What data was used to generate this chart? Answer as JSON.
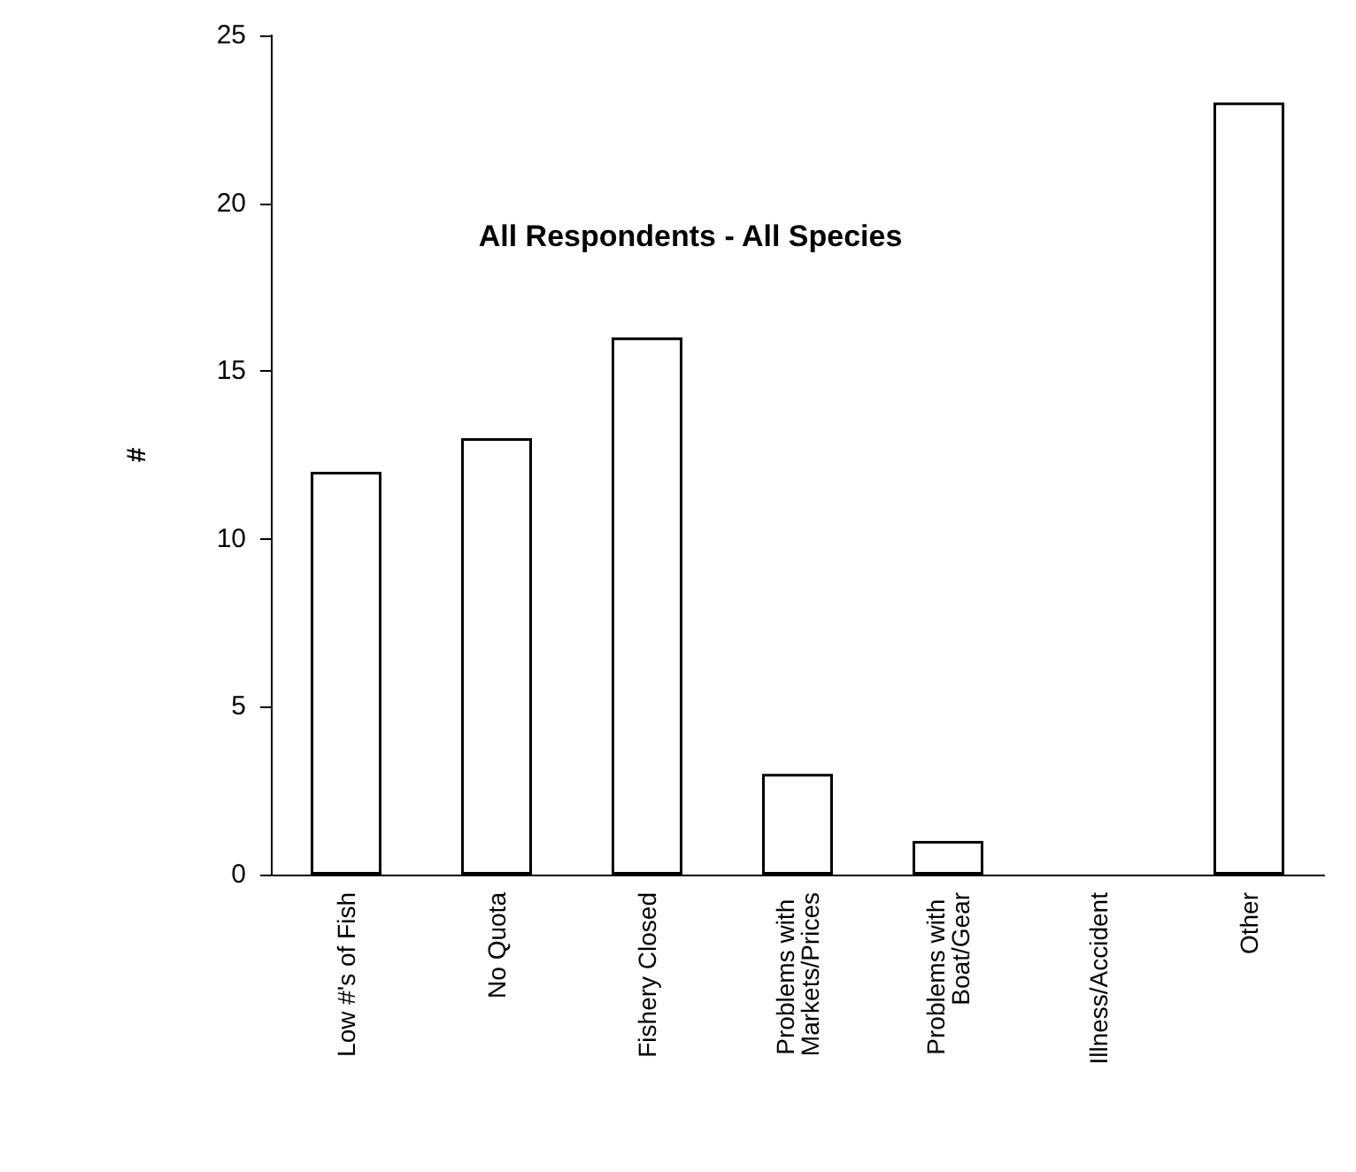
{
  "chart_data": {
    "type": "bar",
    "title": "All Respondents - All Species",
    "ylabel": "#",
    "categories": [
      "Low #'s of Fish",
      "No Quota",
      "Fishery Closed",
      "Problems with Markets/Prices",
      "Problems with Boat/Gear",
      "Illness/Accident",
      "Other"
    ],
    "values": [
      12,
      13,
      16,
      3,
      1,
      0,
      23
    ],
    "color": "#ffffff",
    "ylim": [
      0,
      25
    ],
    "yticks": [
      0,
      5,
      10,
      15,
      20,
      25
    ],
    "grid": false
  }
}
